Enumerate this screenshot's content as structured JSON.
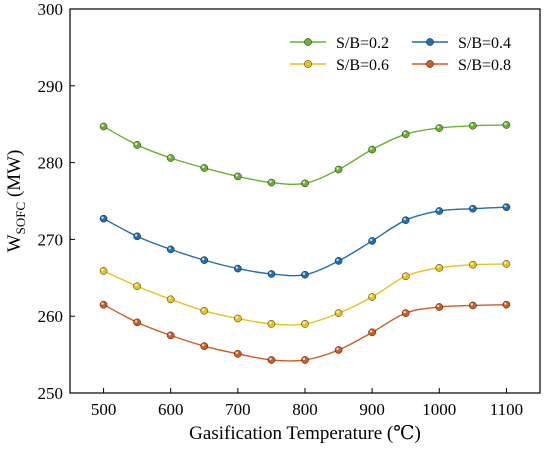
{
  "chart_data": {
    "type": "line",
    "xlabel": "Gasification Temperature (℃)",
    "ylabel": {
      "main": "W",
      "subscript": "SOFC",
      "unit": " (MW)"
    },
    "xlim": [
      450,
      1150
    ],
    "ylim": [
      250,
      300
    ],
    "x": [
      500,
      550,
      600,
      650,
      700,
      750,
      800,
      850,
      900,
      950,
      1000,
      1050,
      1100
    ],
    "x_ticks": [
      500,
      600,
      700,
      800,
      900,
      1000,
      1100
    ],
    "y_ticks": [
      250,
      260,
      270,
      280,
      290,
      300
    ],
    "grid": false,
    "legend_position": "top-right",
    "series": [
      {
        "name": "S/B=0.2",
        "color": "#6ab22e",
        "values": [
          284.7,
          282.3,
          280.6,
          279.3,
          278.2,
          277.4,
          277.3,
          279.1,
          281.7,
          283.7,
          284.5,
          284.8,
          284.9
        ]
      },
      {
        "name": "S/B=0.4",
        "color": "#1f6db3",
        "values": [
          272.7,
          270.4,
          268.7,
          267.3,
          266.2,
          265.5,
          265.4,
          267.2,
          269.8,
          272.5,
          273.7,
          274.0,
          274.2
        ]
      },
      {
        "name": "S/B=0.6",
        "color": "#e8c21c",
        "values": [
          265.9,
          263.9,
          262.2,
          260.7,
          259.7,
          259.0,
          259.0,
          260.4,
          262.5,
          265.2,
          266.3,
          266.7,
          266.8
        ]
      },
      {
        "name": "S/B=0.8",
        "color": "#cf5a22",
        "values": [
          261.5,
          259.2,
          257.5,
          256.1,
          255.1,
          254.3,
          254.3,
          255.6,
          257.9,
          260.4,
          261.2,
          261.4,
          261.5
        ]
      }
    ]
  }
}
